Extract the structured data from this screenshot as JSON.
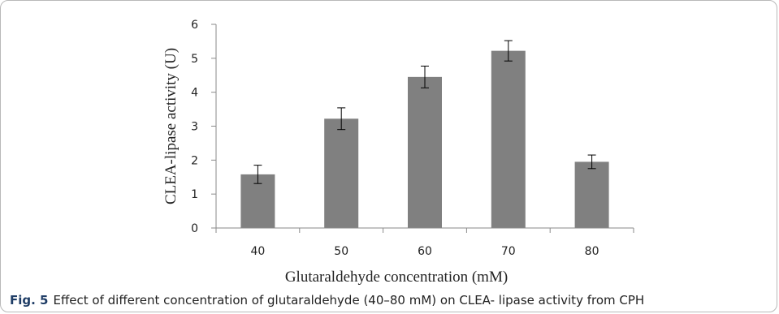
{
  "chart_data": {
    "type": "bar",
    "categories": [
      "40",
      "50",
      "60",
      "70",
      "80"
    ],
    "values": [
      1.58,
      3.22,
      4.45,
      5.22,
      1.95
    ],
    "error": [
      0.27,
      0.32,
      0.32,
      0.3,
      0.2
    ],
    "title": "",
    "xlabel": "Glutaraldehyde concentration (mM)",
    "ylabel": "CLEA-lipase activity (U)",
    "ylim": [
      0,
      6
    ],
    "yticks": [
      "0",
      "1",
      "2",
      "3",
      "4",
      "5",
      "6"
    ],
    "grid": false,
    "legend": "none",
    "colors": {
      "bar": "#808080",
      "axis": "#8a8a8a",
      "error": "#000000"
    }
  },
  "caption": {
    "label": "Fig. 5",
    "text": "Effect of different concentration of glutaraldehyde (40–80 mM) on CLEA- lipase activity from CPH"
  }
}
